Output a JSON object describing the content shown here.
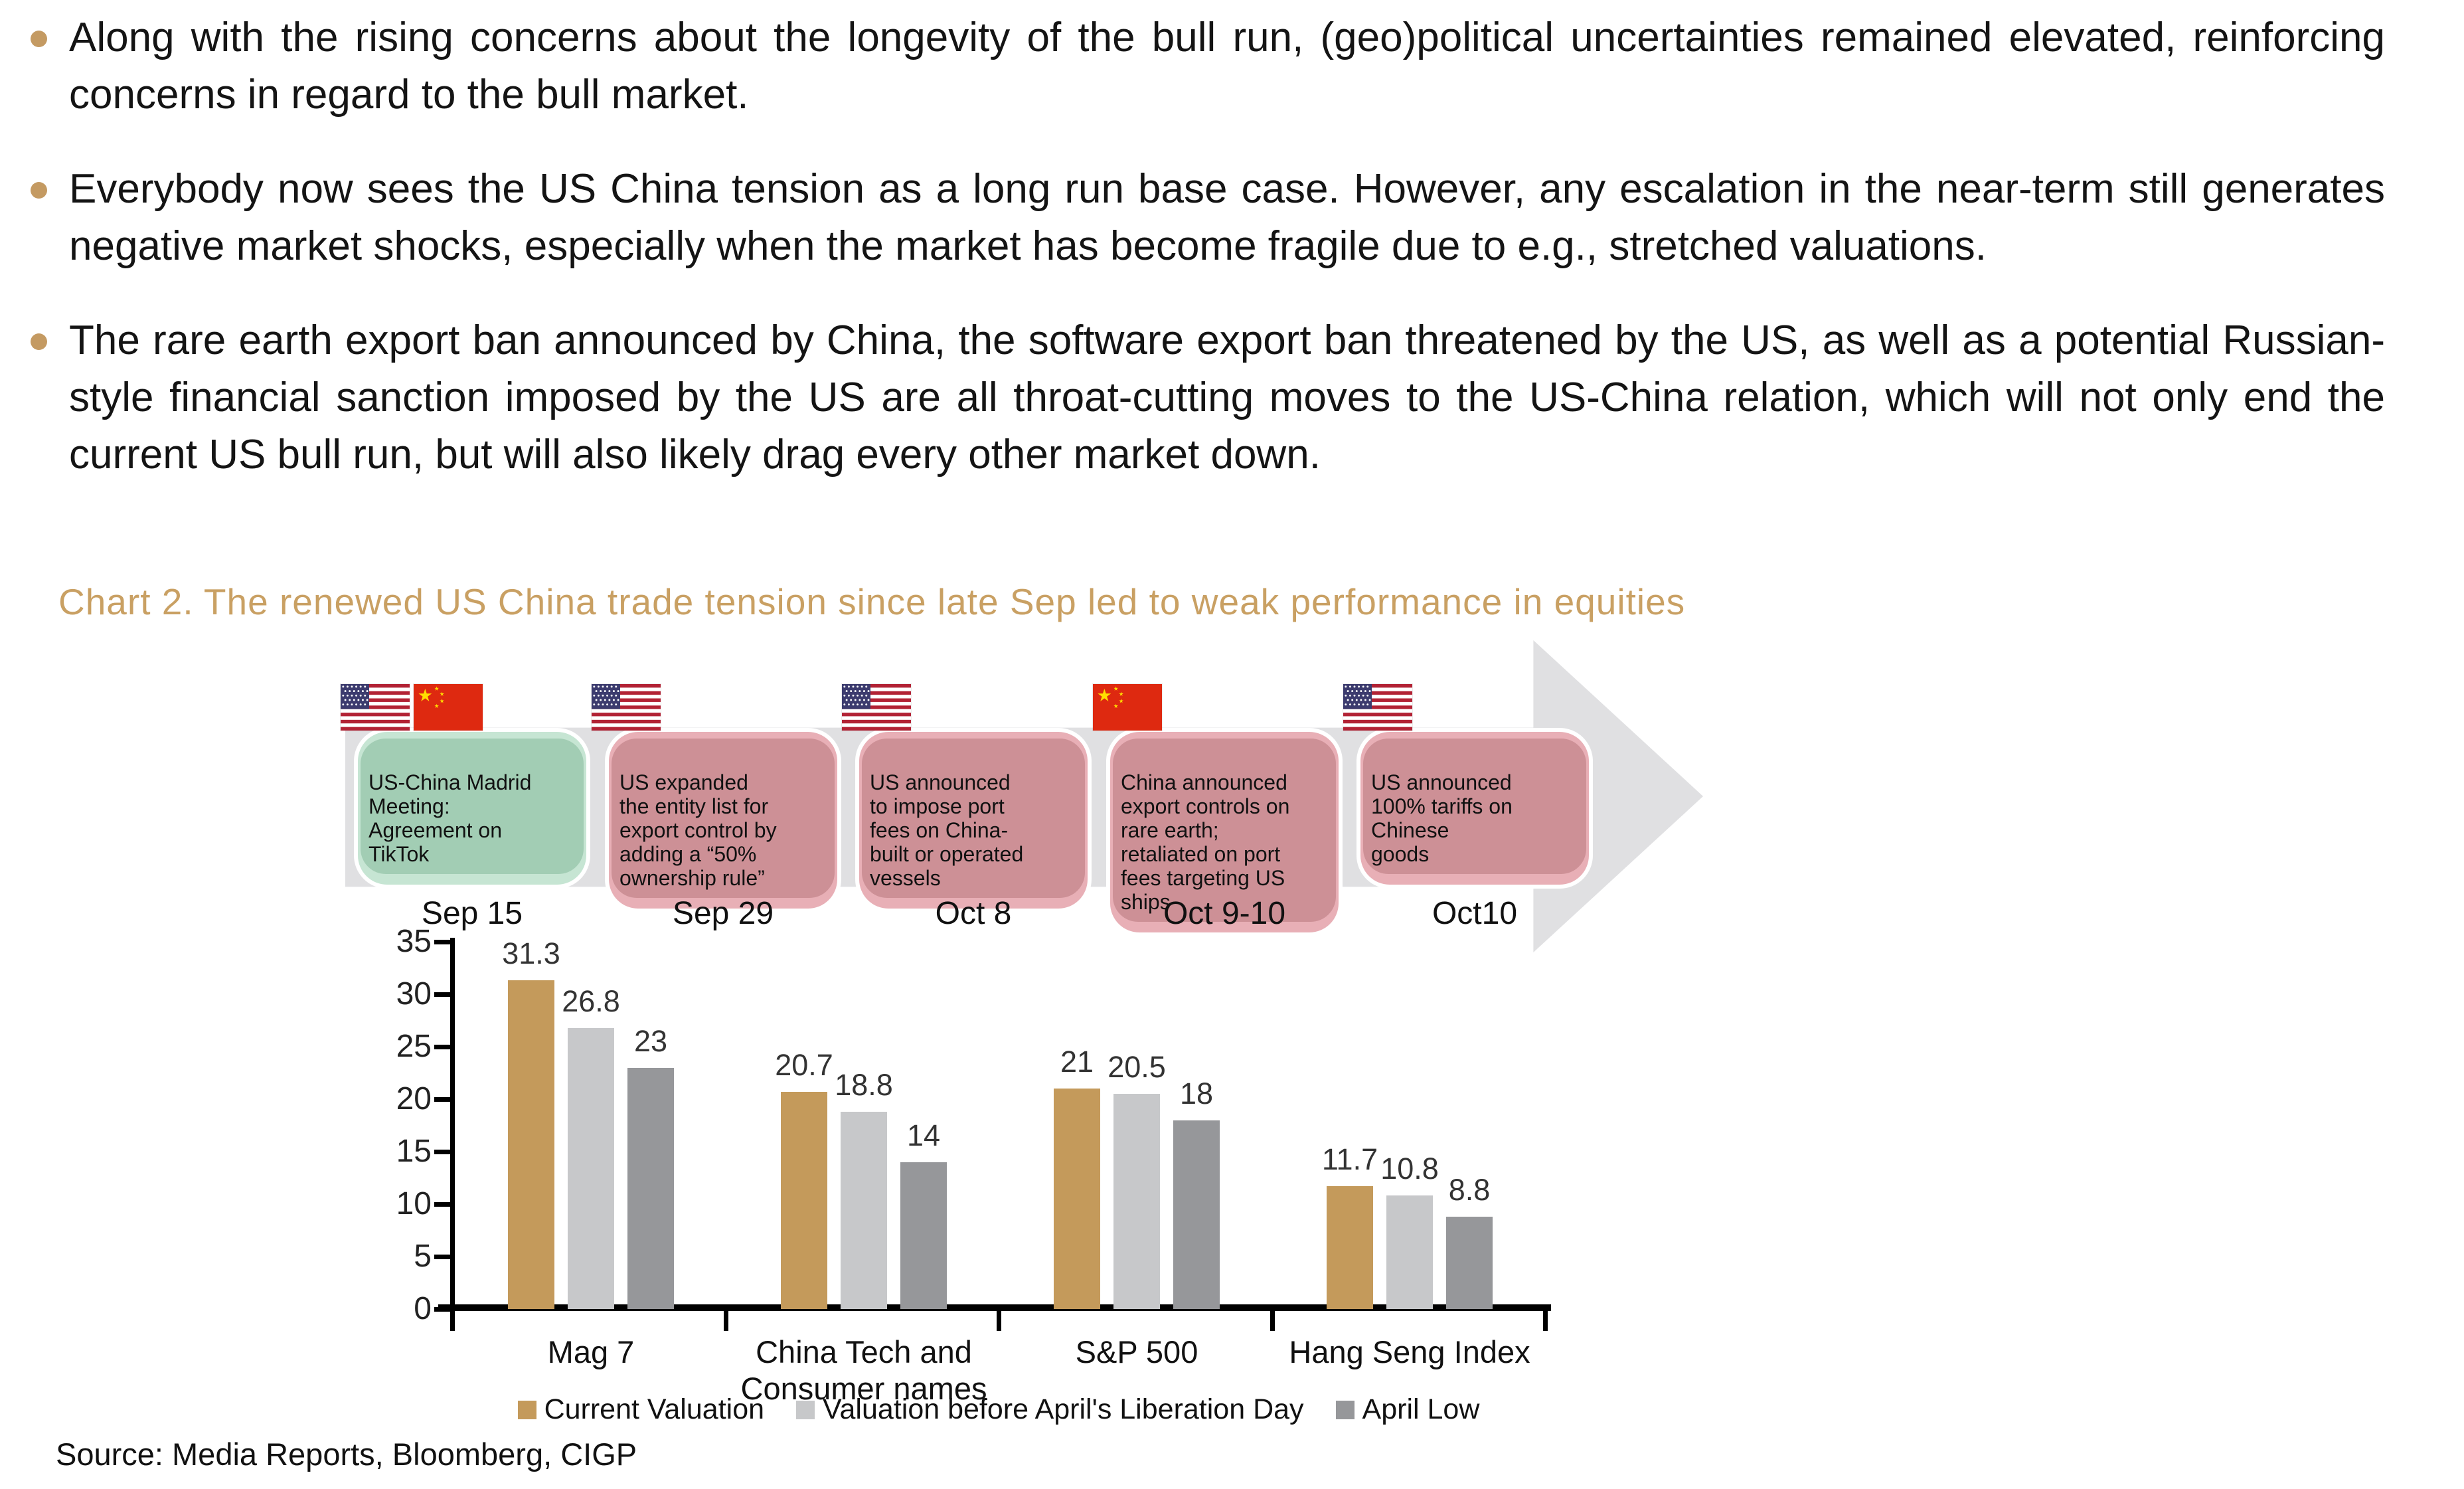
{
  "bullets": [
    {
      "text": "Along with the rising concerns about the longevity of the bull run, (geo)political uncertainties remained elevated, reinforcing concerns in regard to the bull market."
    },
    {
      "text": "Everybody now sees the US China tension as a long run base case. However, any escalation in the near-term still generates negative market shocks, especially when the market has become fragile due to e.g., stretched valuations."
    },
    {
      "text": "The rare earth export ban announced by China, the software export ban threatened by the US, as well as a potential Russian-style financial sanction imposed by the US are all throat-cutting moves to the US-China relation, which will not only end the current US bull run, but will also likely drag every other market down."
    }
  ],
  "chart_title": "Chart 2. The renewed US China trade tension since late Sep led to weak performance in equities",
  "timeline": {
    "events": [
      {
        "date": "Sep 15",
        "tone": "green",
        "flags": [
          "us",
          "cn"
        ],
        "text": "US-China Madrid\nMeeting:\nAgreement on\nTikTok"
      },
      {
        "date": "Sep 29",
        "tone": "pink",
        "flags": [
          "us"
        ],
        "text": "US expanded\nthe entity list for\nexport control by\nadding a “50%\nownership rule”"
      },
      {
        "date": "Oct 8",
        "tone": "pink",
        "flags": [
          "us"
        ],
        "text": "US announced\nto impose port\nfees on China-\nbuilt or operated\nvessels"
      },
      {
        "date": "Oct 9-10",
        "tone": "pink",
        "flags": [
          "cn"
        ],
        "text": "China announced\nexport controls on\nrare earth;\nretaliated on port\nfees targeting US\nships"
      },
      {
        "date": "Oct10",
        "tone": "pink",
        "flags": [
          "us"
        ],
        "text": "US announced\n100% tariffs on\nChinese\ngoods"
      }
    ]
  },
  "chart_data": {
    "type": "bar",
    "categories": [
      "Mag 7",
      "China Tech and Consumer names",
      "S&P 500",
      "Hang Seng Index"
    ],
    "series": [
      {
        "name": "Current Valuation",
        "color": "#C49A5B",
        "values": [
          31.3,
          20.7,
          21,
          11.7
        ]
      },
      {
        "name": "Valuation before April's Liberation Day",
        "color": "#C7C8CA",
        "values": [
          26.8,
          18.8,
          20.5,
          10.8
        ]
      },
      {
        "name": "April Low",
        "color": "#96979A",
        "values": [
          23,
          14,
          18,
          8.8
        ]
      }
    ],
    "ylim": [
      0,
      35
    ],
    "yticks": [
      0,
      5,
      10,
      15,
      20,
      25,
      30,
      35
    ],
    "grid": false,
    "legend_position": "bottom",
    "xlabel": "",
    "ylabel": ""
  },
  "source": "Source: Media Reports, Bloomberg, CIGP",
  "colors": {
    "accent_gold": "#C9A063",
    "bullet_dot": "#C49A62",
    "box_green": "#A2CDB4",
    "box_green_halo": "#C6E5D3",
    "box_pink": "#CD9096",
    "box_pink_halo": "#E8AFB6",
    "arrow_gray": "#E0E0E2",
    "bar_gold": "#C49A5B",
    "bar_light_gray": "#C7C8CA",
    "bar_dark_gray": "#96979A"
  }
}
